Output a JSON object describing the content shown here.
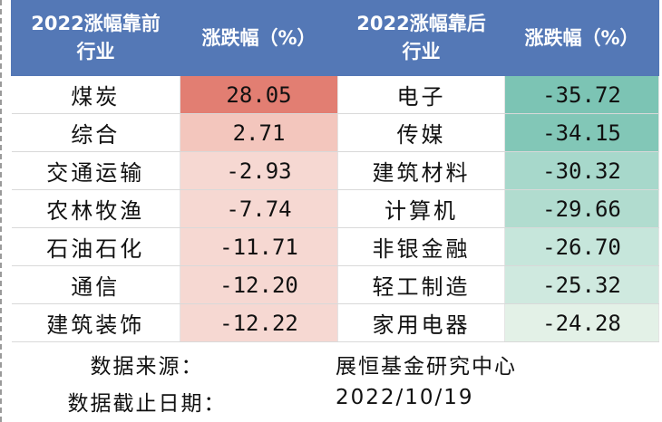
{
  "table": {
    "header": {
      "col1": [
        "2022涨幅靠前",
        "行业"
      ],
      "col2": "涨跌幅（%）",
      "col3": [
        "2022涨幅靠后",
        "行业"
      ],
      "col4": "涨跌幅（%）"
    },
    "rows": [
      {
        "top_industry": "煤炭",
        "top_change": "28.05",
        "bottom_industry": "电子",
        "bottom_change": "-35.72"
      },
      {
        "top_industry": "综合",
        "top_change": "2.71",
        "bottom_industry": "传媒",
        "bottom_change": "-34.15"
      },
      {
        "top_industry": "交通运输",
        "top_change": "-2.93",
        "bottom_industry": "建筑材料",
        "bottom_change": "-30.32"
      },
      {
        "top_industry": "农林牧渔",
        "top_change": "-7.74",
        "bottom_industry": "计算机",
        "bottom_change": "-29.66"
      },
      {
        "top_industry": "石油石化",
        "top_change": "-11.71",
        "bottom_industry": "非银金融",
        "bottom_change": "-26.70"
      },
      {
        "top_industry": "通信",
        "top_change": "-12.20",
        "bottom_industry": "轻工制造",
        "bottom_change": "-25.32"
      },
      {
        "top_industry": "建筑装饰",
        "top_change": "-12.22",
        "bottom_industry": "家用电器",
        "bottom_change": "-24.28"
      }
    ]
  },
  "footer": {
    "source_label": "数据来源：",
    "source_value": "展恒基金研究中心",
    "date_label": "数据截止日期：",
    "date_value": "2022/10/19"
  },
  "colors": {
    "header_bg": "#5478b6",
    "top_cells": [
      "#e27e72",
      "#f3c6bd",
      "#f6d8d2",
      "#f6d8d2",
      "#f6d8d2",
      "#f6d8d2",
      "#f6d8d2"
    ],
    "bottom_cells": [
      "#7cc4b4",
      "#82c7b7",
      "#a7d8cb",
      "#b1dccf",
      "#c6e6db",
      "#cfe9df",
      "#e3f1e7"
    ]
  }
}
